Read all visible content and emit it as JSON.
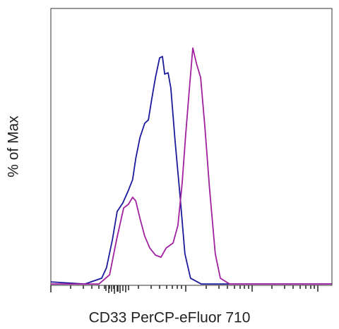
{
  "chart_data": {
    "type": "line",
    "xlabel": "CD33 PerCP-eFluor 710",
    "ylabel": "% of Max",
    "xlim": [
      0,
      100
    ],
    "ylim": [
      0,
      121
    ],
    "series": [
      {
        "color": "#1a1a9c",
        "x": [
          0,
          12.1,
          18.1,
          19.8,
          21.9,
          23.6,
          25.6,
          27.6,
          29.1,
          30.2,
          31.7,
          33.4,
          34.7,
          35.9,
          37.2,
          38.7,
          39.7,
          40.5,
          41.7,
          42.7,
          44.2,
          46.0,
          47.7,
          49.7,
          53.5,
          100
        ],
        "values": [
          1.5,
          0.6,
          3.1,
          7.7,
          20.0,
          32.3,
          36.0,
          41.5,
          46.2,
          55.4,
          64.6,
          70.8,
          72.3,
          81.5,
          90.8,
          99.4,
          100,
          92.3,
          92.9,
          86.2,
          63.1,
          38.5,
          13.8,
          3.1,
          0.6,
          0.6
        ]
      },
      {
        "color": "#a020a0",
        "x": [
          0,
          17.1,
          20.9,
          23.4,
          25.9,
          27.6,
          29.1,
          30.2,
          31.7,
          33.4,
          35.2,
          37.2,
          39.2,
          41.0,
          43.5,
          45.2,
          46.7,
          48.0,
          49.2,
          50.5,
          51.8,
          53.3,
          54.8,
          56.5,
          58.5,
          60.3,
          63.6,
          100
        ],
        "values": [
          0.6,
          0.6,
          4.6,
          20.0,
          33.8,
          35.4,
          38.5,
          36.9,
          29.2,
          21.5,
          16.3,
          13.2,
          12.3,
          16.3,
          18.5,
          26.2,
          44.6,
          66.2,
          84.6,
          103.7,
          96.9,
          90.8,
          69.2,
          41.5,
          13.8,
          3.1,
          0.6,
          0.6
        ]
      }
    ]
  }
}
